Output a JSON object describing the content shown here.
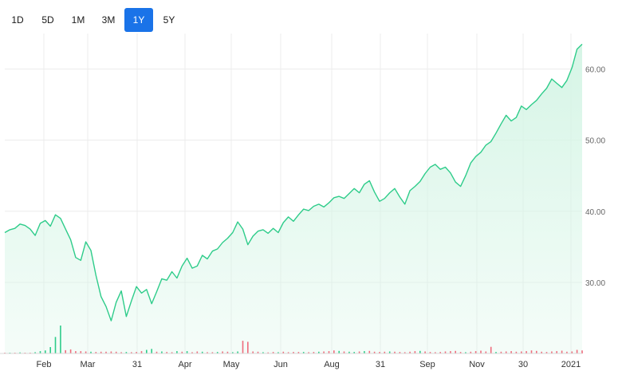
{
  "range_selector": {
    "buttons": [
      {
        "label": "1D",
        "active": false
      },
      {
        "label": "5D",
        "active": false
      },
      {
        "label": "1M",
        "active": false
      },
      {
        "label": "3M",
        "active": false
      },
      {
        "label": "1Y",
        "active": true
      },
      {
        "label": "5Y",
        "active": false
      }
    ]
  },
  "colors": {
    "line": "#2ecc8a",
    "fill": "#d6f5e6",
    "volume_up": "#2ecc8a",
    "volume_down": "#ef6b7c",
    "active_button": "#1a73e8",
    "grid": "#ececec"
  },
  "chart_data": {
    "type": "area",
    "title": "",
    "xlabel": "",
    "ylabel": "",
    "ylim": [
      20,
      65
    ],
    "yticks": [
      "30.00",
      "40.00",
      "50.00",
      "60.00"
    ],
    "x_tick_labels": [
      "Feb",
      "Mar",
      "31",
      "Apr",
      "May",
      "Jun",
      "Aug",
      "31",
      "Sep",
      "Nov",
      "30",
      "2021"
    ],
    "grid": true,
    "legend": "none",
    "series": [
      {
        "values": [
          37.0,
          37.4,
          37.6,
          38.2,
          38.0,
          37.5,
          36.6,
          38.3,
          38.7,
          37.9,
          39.5,
          39.0,
          37.5,
          36.0,
          33.5,
          33.1,
          35.7,
          34.5,
          31.0,
          28.0,
          26.6,
          24.6,
          27.2,
          28.8,
          25.2,
          27.4,
          29.4,
          28.5,
          29.0,
          27.0,
          28.7,
          30.5,
          30.3,
          31.5,
          30.6,
          32.3,
          33.4,
          32.0,
          32.3,
          33.8,
          33.3,
          34.4,
          34.7,
          35.6,
          36.2,
          37.0,
          38.5,
          37.5,
          35.3,
          36.5,
          37.2,
          37.4,
          36.9,
          37.6,
          37.0,
          38.4,
          39.2,
          38.6,
          39.5,
          40.3,
          40.1,
          40.7,
          41.0,
          40.6,
          41.2,
          41.9,
          42.1,
          41.8,
          42.5,
          43.2,
          42.6,
          43.8,
          44.3,
          42.7,
          41.4,
          41.8,
          42.6,
          43.2,
          42.0,
          41.0,
          42.9,
          43.5,
          44.2,
          45.3,
          46.2,
          46.6,
          45.9,
          46.2,
          45.4,
          44.1,
          43.5,
          45.0,
          46.8,
          47.7,
          48.3,
          49.3,
          49.8,
          51.0,
          52.3,
          53.5,
          52.7,
          53.2,
          54.8,
          54.3,
          55.0,
          55.6,
          56.5,
          57.3,
          58.6,
          58.0,
          57.4,
          58.4,
          60.2,
          62.8,
          63.5
        ]
      }
    ],
    "volume": {
      "values": [
        0.3,
        0.2,
        0.2,
        0.4,
        0.2,
        0.3,
        0.5,
        0.9,
        1.2,
        2.5,
        6.5,
        11.0,
        1.3,
        1.6,
        0.9,
        0.9,
        0.8,
        0.7,
        0.6,
        0.7,
        0.7,
        0.8,
        0.7,
        0.5,
        0.6,
        0.5,
        0.6,
        0.9,
        1.4,
        1.8,
        0.7,
        0.8,
        0.6,
        0.5,
        0.9,
        0.7,
        0.9,
        0.5,
        0.8,
        0.7,
        0.5,
        0.5,
        0.6,
        0.8,
        0.7,
        0.5,
        0.8,
        5.0,
        4.6,
        0.8,
        0.7,
        0.5,
        0.4,
        0.6,
        0.5,
        0.7,
        0.5,
        0.6,
        0.6,
        0.6,
        0.5,
        0.6,
        0.7,
        0.8,
        0.9,
        1.2,
        1.0,
        0.8,
        0.7,
        0.6,
        0.8,
        0.9,
        1.0,
        0.7,
        0.6,
        0.7,
        0.8,
        0.7,
        0.6,
        0.5,
        0.7,
        0.9,
        1.0,
        0.8,
        0.6,
        0.5,
        0.6,
        0.8,
        0.9,
        1.0,
        0.6,
        0.5,
        0.7,
        0.9,
        1.1,
        0.8,
        2.6,
        0.6,
        0.7,
        0.8,
        0.9,
        0.7,
        0.8,
        0.9,
        1.2,
        1.0,
        0.7,
        0.6,
        0.8,
        0.9,
        1.1,
        0.7,
        0.8,
        1.4,
        1.2
      ],
      "down_flags": [
        1,
        0,
        1,
        0,
        1,
        1,
        0,
        0,
        0,
        0,
        0,
        0,
        1,
        1,
        1,
        1,
        1,
        0,
        1,
        1,
        1,
        1,
        1,
        1,
        0,
        1,
        1,
        1,
        0,
        0,
        1,
        0,
        1,
        1,
        0,
        1,
        0,
        1,
        1,
        0,
        1,
        1,
        0,
        1,
        1,
        0,
        0,
        1,
        1,
        1,
        1,
        0,
        1,
        1,
        0,
        1,
        1,
        1,
        1,
        0,
        1,
        1,
        0,
        1,
        1,
        1,
        0,
        1,
        0,
        0,
        1,
        0,
        1,
        1,
        1,
        1,
        0,
        1,
        1,
        1,
        1,
        1,
        0,
        1,
        1,
        1,
        1,
        1,
        1,
        1,
        1,
        0,
        1,
        1,
        1,
        1,
        1,
        0,
        1,
        1,
        1,
        1,
        1,
        1,
        1,
        1,
        1,
        1,
        1,
        1,
        1,
        1,
        1,
        1,
        1
      ]
    }
  }
}
